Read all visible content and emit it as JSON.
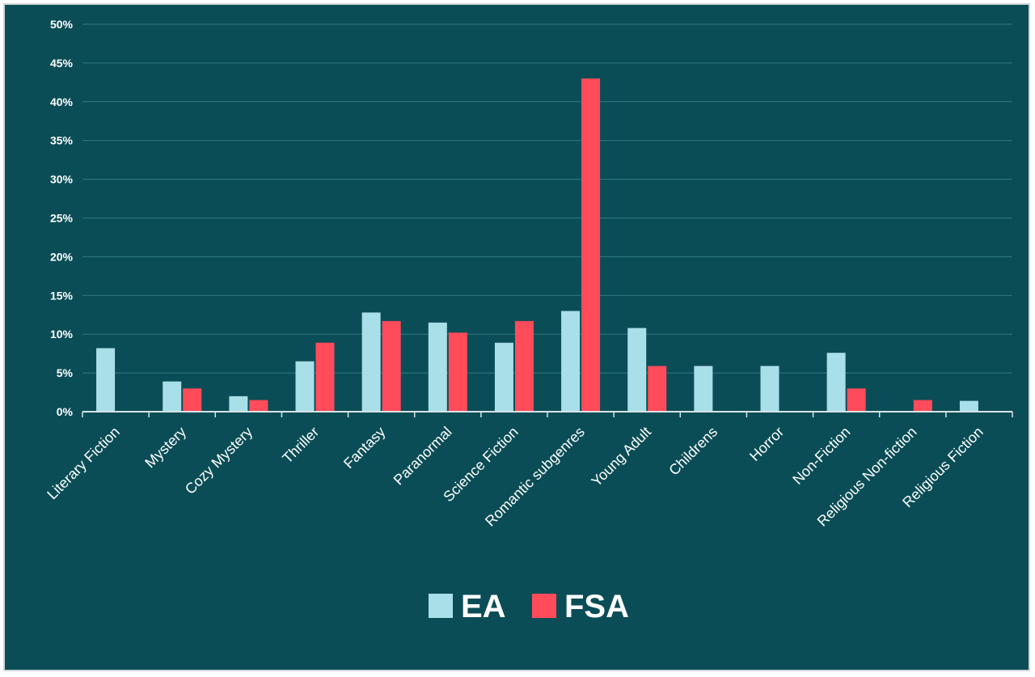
{
  "chart_data": {
    "type": "bar",
    "categories": [
      "Literary Fiction",
      "Mystery",
      "Cozy Mystery",
      "Thriller",
      "Fantasy",
      "Paranormal",
      "Science Fiction",
      "Romantic subgenres",
      "Young Adult",
      "Childrens",
      "Horror",
      "Non-Fiction",
      "Religious Non-fiction",
      "Religious Fiction"
    ],
    "series": [
      {
        "name": "EA",
        "color": "#a9dfe8",
        "values": [
          8.2,
          3.9,
          2.0,
          6.5,
          12.8,
          11.5,
          8.9,
          13.0,
          10.8,
          5.9,
          5.9,
          7.6,
          0,
          1.4
        ]
      },
      {
        "name": "FSA",
        "color": "#ff4b5a",
        "values": [
          0,
          3.0,
          1.5,
          8.9,
          11.7,
          10.2,
          11.7,
          43.0,
          5.9,
          0,
          0,
          3.0,
          1.5,
          0
        ]
      }
    ],
    "ylim": [
      0,
      50
    ],
    "yticks": [
      "0%",
      "5%",
      "10%",
      "15%",
      "20%",
      "25%",
      "30%",
      "35%",
      "40%",
      "45%",
      "50%"
    ],
    "grid": true,
    "legend_position": "bottom"
  },
  "colors": {
    "background": "#0b4d56",
    "gridline": "#2f7a84",
    "axis": "#d8e4e6"
  }
}
